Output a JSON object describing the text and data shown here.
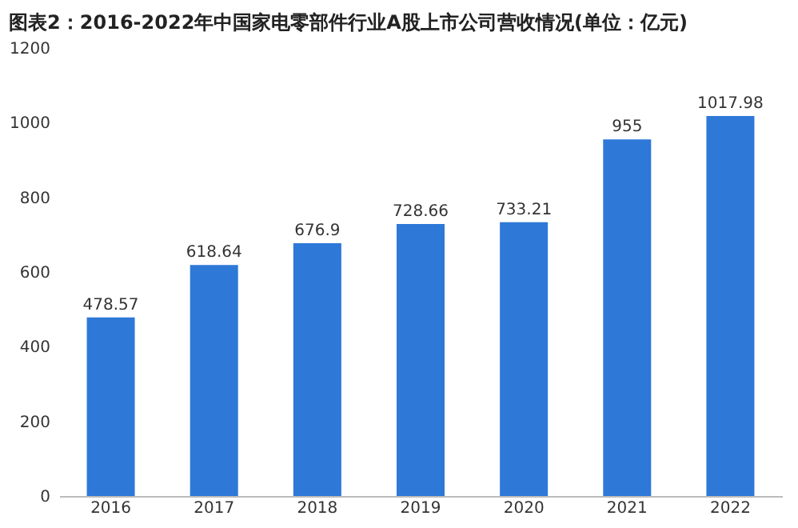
{
  "chart_data": {
    "type": "bar",
    "title": "图表2：2016-2022年中国家电零部件行业A股上市公司营收情况(单位：亿元)",
    "categories": [
      "2016",
      "2017",
      "2018",
      "2019",
      "2020",
      "2021",
      "2022"
    ],
    "values": [
      478.57,
      618.64,
      676.9,
      728.66,
      733.21,
      955,
      1017.98
    ],
    "color": "#2e78d8",
    "ylim": [
      0,
      1200
    ],
    "yticks": [
      0,
      200,
      400,
      600,
      800,
      1000,
      1200
    ],
    "grid": false,
    "data_labels": true
  }
}
